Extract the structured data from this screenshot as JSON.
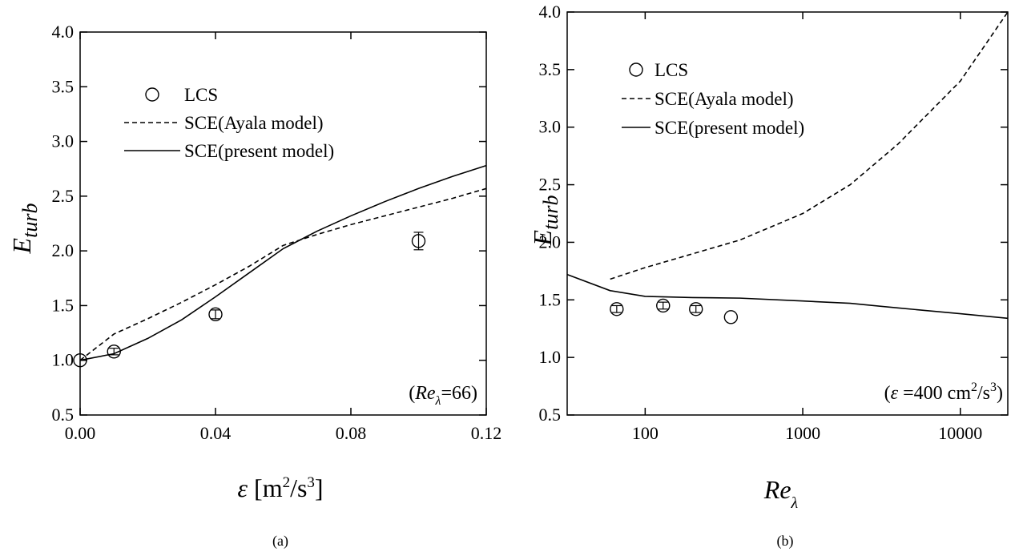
{
  "chart_data": [
    {
      "type": "line",
      "caption": "(a)",
      "x_label": [
        "ε",
        " [m",
        "2",
        "/s",
        "3",
        "]"
      ],
      "y_label": [
        "E",
        "turb"
      ],
      "annotation": [
        "(",
        "Re",
        "λ",
        "=66)"
      ],
      "xlim": [
        0,
        0.12
      ],
      "ylim": [
        0.5,
        4.0
      ],
      "xticks": [
        {
          "value": 0,
          "label": "0.00"
        },
        0.04,
        0.08,
        0.12
      ],
      "yticks": [
        0.5,
        {
          "value": 1,
          "label": "1.0"
        },
        1.5,
        {
          "value": 2,
          "label": "2.0"
        },
        2.5,
        {
          "value": 3,
          "label": "3.0"
        },
        3.5,
        {
          "value": 4,
          "label": "4.0"
        }
      ],
      "series": [
        {
          "name": "LCS",
          "color": "#000000",
          "line_style": "none",
          "marker": "circle",
          "x": [
            0,
            0.01,
            0.04,
            0.1
          ],
          "values": [
            1.0,
            1.08,
            1.42,
            2.09
          ],
          "errors": [
            null,
            0.03,
            0.04,
            0.08
          ]
        },
        {
          "name": "SCE(Ayala model)",
          "color": "#000000",
          "line_style": "dashed",
          "marker": null,
          "x": [
            0,
            0.01,
            0.02,
            0.03,
            0.04,
            0.05,
            0.06,
            0.07,
            0.08,
            0.09,
            0.1,
            0.11,
            0.12
          ],
          "values": [
            1.0,
            1.24,
            1.38,
            1.53,
            1.69,
            1.86,
            2.05,
            2.15,
            2.24,
            2.32,
            2.4,
            2.48,
            2.57
          ]
        },
        {
          "name": "SCE(present model)",
          "color": "#000000",
          "line_style": "solid",
          "marker": null,
          "x": [
            0,
            0.01,
            0.02,
            0.03,
            0.04,
            0.05,
            0.06,
            0.07,
            0.08,
            0.09,
            0.1,
            0.11,
            0.12
          ],
          "values": [
            1.0,
            1.06,
            1.2,
            1.37,
            1.58,
            1.8,
            2.02,
            2.18,
            2.32,
            2.45,
            2.57,
            2.68,
            2.78
          ]
        }
      ]
    },
    {
      "type": "line",
      "caption": "(b)",
      "xscale": "log",
      "x_label": [
        "Re",
        "λ"
      ],
      "y_label": [
        "E",
        "turb"
      ],
      "annotation": [
        "(",
        "ε",
        " =400 cm",
        "2",
        "/s",
        "3",
        ")"
      ],
      "xlim": [
        32,
        20000
      ],
      "ylim": [
        0.5,
        4.0
      ],
      "xticks": [
        100,
        1000,
        10000
      ],
      "yticks": [
        0.5,
        {
          "value": 1,
          "label": "1.0"
        },
        1.5,
        {
          "value": 2,
          "label": "2.0"
        },
        2.5,
        {
          "value": 3,
          "label": "3.0"
        },
        3.5,
        {
          "value": 4,
          "label": "4.0"
        }
      ],
      "series": [
        {
          "name": "LCS",
          "color": "#000000",
          "line_style": "none",
          "marker": "circle",
          "x": [
            66,
            130,
            210,
            350
          ],
          "values": [
            1.42,
            1.45,
            1.42,
            1.35
          ],
          "errors": [
            0.03,
            0.03,
            0.03,
            null
          ]
        },
        {
          "name": "SCE(Ayala model)",
          "color": "#000000",
          "line_style": "dashed",
          "marker": null,
          "x": [
            60,
            100,
            200,
            400,
            1000,
            2000,
            4000,
            10000,
            20000
          ],
          "values": [
            1.68,
            1.78,
            1.9,
            2.02,
            2.25,
            2.5,
            2.85,
            3.4,
            4.0
          ]
        },
        {
          "name": "SCE(present model)",
          "color": "#000000",
          "line_style": "solid",
          "marker": null,
          "x": [
            32,
            60,
            100,
            200,
            400,
            1000,
            2000,
            4000,
            10000,
            20000
          ],
          "values": [
            1.72,
            1.58,
            1.53,
            1.52,
            1.515,
            1.49,
            1.47,
            1.43,
            1.38,
            1.34
          ]
        }
      ]
    }
  ]
}
